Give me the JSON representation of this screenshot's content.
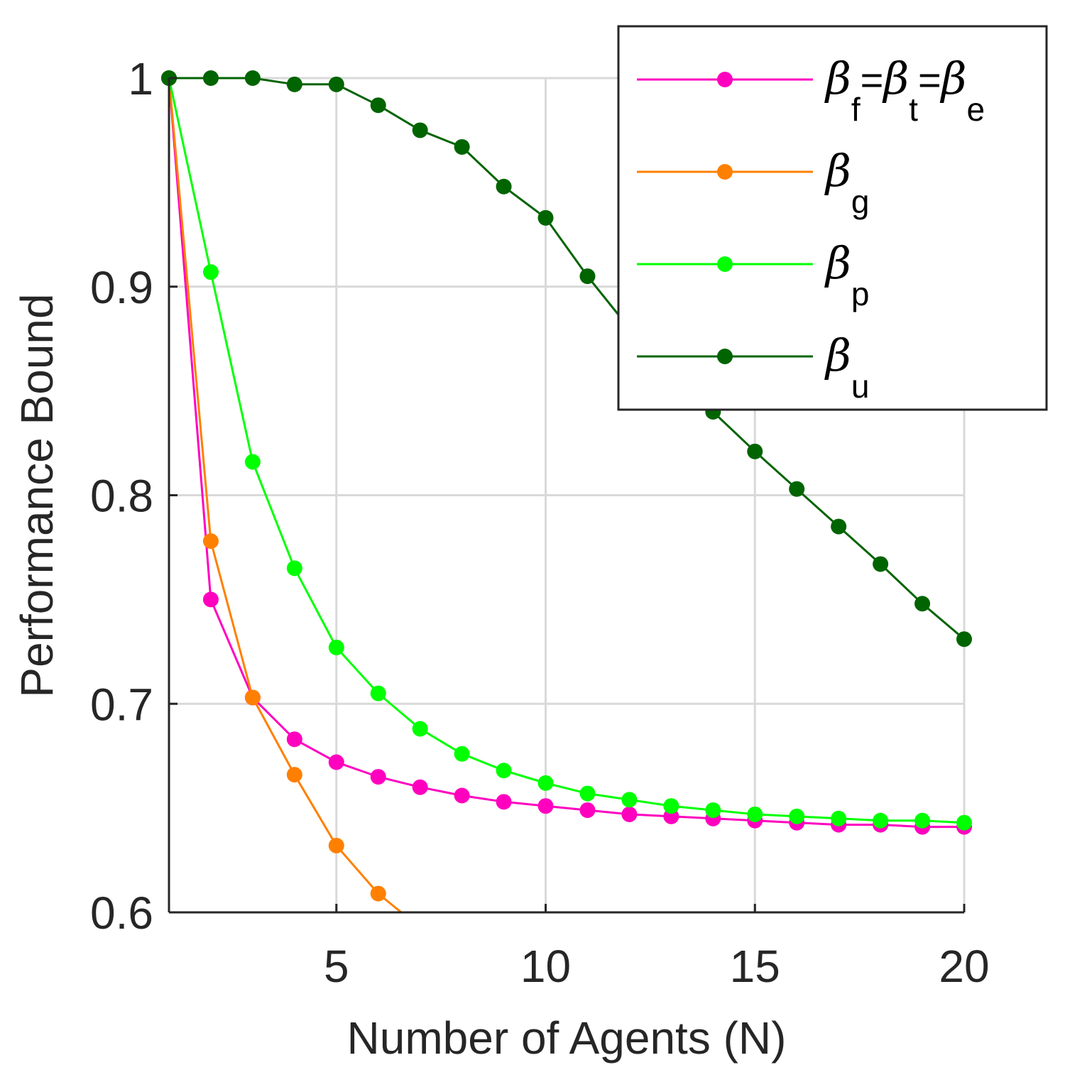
{
  "chart_data": {
    "type": "line",
    "title": "",
    "xlabel": "Number of Agents (N)",
    "ylabel": "Performance Bound",
    "xlim": [
      1,
      20
    ],
    "ylim": [
      0.6,
      1.0
    ],
    "xticks": [
      5,
      10,
      15,
      20
    ],
    "xtick_labels": [
      "5",
      "10",
      "15",
      "20"
    ],
    "yticks": [
      0.6,
      0.7,
      0.8,
      0.9,
      1.0
    ],
    "ytick_labels": [
      "0.6",
      "0.7",
      "0.8",
      "0.9",
      "1"
    ],
    "grid": true,
    "legend_position": "top-right",
    "series": [
      {
        "name": "βf=βt=βe",
        "legend": {
          "symbol": "β",
          "parts": [
            {
              "sub": "f"
            },
            {
              "eq": "="
            },
            {
              "sym": "β"
            },
            {
              "sub": "t"
            },
            {
              "eq": "="
            },
            {
              "sym": "β"
            },
            {
              "sub": "e"
            }
          ]
        },
        "color": "#ff00bf",
        "x": [
          1,
          2,
          3,
          4,
          5,
          6,
          7,
          8,
          9,
          10,
          11,
          12,
          13,
          14,
          15,
          16,
          17,
          18,
          19,
          20
        ],
        "y": [
          1.0,
          0.75,
          0.703,
          0.683,
          0.672,
          0.665,
          0.66,
          0.656,
          0.653,
          0.651,
          0.649,
          0.647,
          0.646,
          0.645,
          0.644,
          0.643,
          0.642,
          0.642,
          0.641,
          0.641
        ]
      },
      {
        "name": "βg",
        "legend": {
          "symbol": "β",
          "parts": [
            {
              "sub": "g"
            }
          ]
        },
        "color": "#ff8000",
        "x": [
          1,
          2,
          3,
          4,
          5,
          6,
          6.55
        ],
        "y": [
          1.0,
          0.778,
          0.703,
          0.666,
          0.632,
          0.609,
          0.6
        ]
      },
      {
        "name": "βp",
        "legend": {
          "symbol": "β",
          "parts": [
            {
              "sub": "p"
            }
          ]
        },
        "color": "#00ff00",
        "x": [
          1,
          2,
          3,
          4,
          5,
          6,
          7,
          8,
          9,
          10,
          11,
          12,
          13,
          14,
          15,
          16,
          17,
          18,
          19,
          20
        ],
        "y": [
          1.0,
          0.907,
          0.816,
          0.765,
          0.727,
          0.705,
          0.688,
          0.676,
          0.668,
          0.662,
          0.657,
          0.654,
          0.651,
          0.649,
          0.647,
          0.646,
          0.645,
          0.644,
          0.644,
          0.643
        ]
      },
      {
        "name": "βu",
        "legend": {
          "symbol": "β",
          "parts": [
            {
              "sub": "u"
            }
          ]
        },
        "color": "#006400",
        "x": [
          1,
          2,
          3,
          4,
          5,
          6,
          7,
          8,
          9,
          10,
          11,
          12,
          13,
          14,
          15,
          16,
          17,
          18,
          19,
          20
        ],
        "y": [
          1.0,
          1.0,
          1.0,
          0.997,
          0.997,
          0.987,
          0.975,
          0.967,
          0.948,
          0.933,
          0.905,
          0.88,
          0.86,
          0.84,
          0.821,
          0.803,
          0.785,
          0.767,
          0.748,
          0.731
        ]
      }
    ]
  }
}
